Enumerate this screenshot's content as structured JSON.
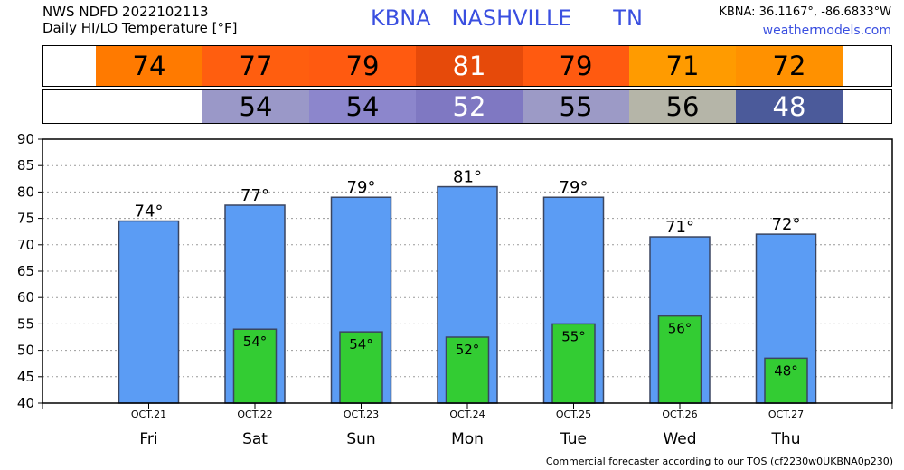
{
  "header": {
    "line1": "NWS NDFD 2022102113",
    "line2": "Daily HI/LO Temperature [°F]",
    "station": "KBNA   NASHVILLE      TN",
    "coords": "KBNA: 36.1167°, -86.6833°W",
    "site": "weathermodels.com"
  },
  "strips": {
    "hi": [
      {
        "value": "74",
        "color": "#ff7a00",
        "text_color": "#000000"
      },
      {
        "value": "77",
        "color": "#ff5e0f",
        "text_color": "#000000"
      },
      {
        "value": "79",
        "color": "#ff5a10",
        "text_color": "#000000"
      },
      {
        "value": "81",
        "color": "#e64a0a",
        "text_color": "#ffffff"
      },
      {
        "value": "79",
        "color": "#ff5a10",
        "text_color": "#000000"
      },
      {
        "value": "71",
        "color": "#ff9b00",
        "text_color": "#000000"
      },
      {
        "value": "72",
        "color": "#ff9100",
        "text_color": "#000000"
      }
    ],
    "lo": [
      {
        "value": "",
        "color": "#ffffff",
        "text_color": "#000000"
      },
      {
        "value": "54",
        "color": "#9a98c8",
        "text_color": "#000000"
      },
      {
        "value": "54",
        "color": "#8c86cc",
        "text_color": "#000000"
      },
      {
        "value": "52",
        "color": "#7f78c2",
        "text_color": "#ffffff"
      },
      {
        "value": "55",
        "color": "#9c9ac6",
        "text_color": "#000000"
      },
      {
        "value": "56",
        "color": "#b5b5a8",
        "text_color": "#000000"
      },
      {
        "value": "48",
        "color": "#4b5a9a",
        "text_color": "#ffffff"
      }
    ]
  },
  "chart_data": {
    "type": "bar",
    "categories": [
      "Fri",
      "Sat",
      "Sun",
      "Mon",
      "Tue",
      "Wed",
      "Thu"
    ],
    "dates": [
      "OCT.21",
      "OCT.22",
      "OCT.23",
      "OCT.24",
      "OCT.25",
      "OCT.26",
      "OCT.27"
    ],
    "series": [
      {
        "values": [
          74.5,
          77.5,
          79,
          81,
          79,
          71.5,
          72
        ],
        "labels": [
          "74°",
          "77°",
          "79°",
          "81°",
          "79°",
          "71°",
          "72°"
        ],
        "color": "#5b9cf4"
      },
      {
        "values": [
          null,
          54,
          53.5,
          52.5,
          55,
          56.5,
          48.5
        ],
        "labels": [
          "",
          "54°",
          "54°",
          "52°",
          "55°",
          "56°",
          "48°"
        ],
        "color": "#33cc33"
      }
    ],
    "ylim": [
      40,
      90
    ],
    "yticks": [
      40,
      45,
      50,
      55,
      60,
      65,
      70,
      75,
      80,
      85,
      90
    ],
    "grid": true
  },
  "footer": "Commercial forecaster according to our TOS (cf2230w0UKBNA0p230)"
}
